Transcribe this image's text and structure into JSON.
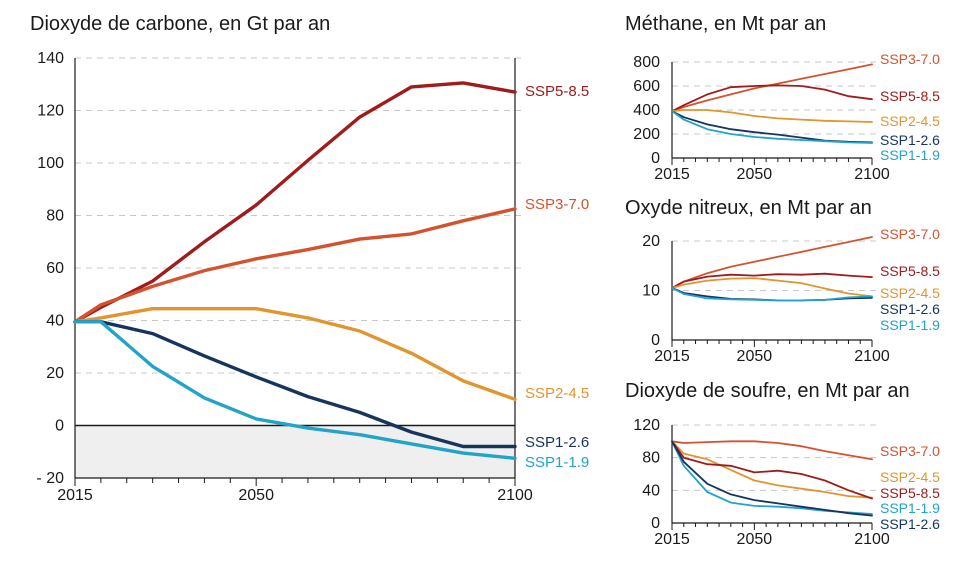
{
  "colors": {
    "SSP5-8.5": "#a01c1c",
    "SSP3-7.0": "#d4532f",
    "SSP2-4.5": "#e0952f",
    "SSP1-2.6": "#16345e",
    "SSP1-1.9": "#22a3c8",
    "negative_band": "#efefef"
  },
  "chart_data": [
    {
      "id": "co2",
      "type": "line",
      "title": "Dioxyde de carbone, en Gt par an",
      "xlim": [
        2015,
        2100
      ],
      "ylim": [
        -20,
        140
      ],
      "x_tick_labels": [
        "2015",
        "2050",
        "2100"
      ],
      "y_ticks": [
        -20,
        0,
        20,
        40,
        60,
        80,
        100,
        120,
        140
      ],
      "y_tick_labels": [
        "- 20",
        "0",
        "20",
        "40",
        "60",
        "80",
        "100",
        "120",
        "140"
      ],
      "negative_band": true,
      "x": [
        2015,
        2020,
        2030,
        2040,
        2050,
        2060,
        2070,
        2080,
        2090,
        2100
      ],
      "series": [
        {
          "name": "SSP5-8.5",
          "values": [
            39.5,
            45,
            55,
            70,
            84,
            101,
            117.5,
            129,
            130.5,
            127
          ]
        },
        {
          "name": "SSP3-7.0",
          "values": [
            39.5,
            46,
            53,
            59,
            63.5,
            67,
            71,
            73,
            78,
            82.5
          ]
        },
        {
          "name": "SSP2-4.5",
          "values": [
            39.5,
            41,
            44.5,
            44.5,
            44.5,
            41,
            36,
            27.5,
            17,
            10
          ]
        },
        {
          "name": "SSP1-2.6",
          "values": [
            39.5,
            39.5,
            35,
            26.5,
            18.5,
            11,
            5,
            -2.5,
            -8,
            -8
          ]
        },
        {
          "name": "SSP1-1.9",
          "values": [
            39.5,
            39.5,
            22.5,
            10.5,
            2.5,
            -1,
            -3.5,
            -7,
            -10.5,
            -12.5
          ]
        }
      ],
      "label_order": [
        "SSP5-8.5",
        "SSP3-7.0",
        "SSP2-4.5",
        "SSP1-2.6",
        "SSP1-1.9"
      ]
    },
    {
      "id": "ch4",
      "type": "line",
      "title": "Méthane, en Mt par an",
      "xlim": [
        2015,
        2100
      ],
      "ylim": [
        0,
        800
      ],
      "x_tick_labels": [
        "2015",
        "2050",
        "2100"
      ],
      "y_ticks": [
        0,
        200,
        400,
        600,
        800
      ],
      "y_tick_labels": [
        "0",
        "200",
        "400",
        "600",
        "800"
      ],
      "x": [
        2015,
        2020,
        2030,
        2040,
        2050,
        2060,
        2070,
        2080,
        2090,
        2100
      ],
      "series": [
        {
          "name": "SSP3-7.0",
          "values": [
            390,
            425,
            480,
            530,
            580,
            620,
            660,
            700,
            740,
            780
          ]
        },
        {
          "name": "SSP5-8.5",
          "values": [
            390,
            440,
            530,
            590,
            600,
            605,
            600,
            570,
            515,
            490
          ]
        },
        {
          "name": "SSP2-4.5",
          "values": [
            390,
            400,
            400,
            380,
            350,
            330,
            320,
            310,
            305,
            300
          ]
        },
        {
          "name": "SSP1-2.6",
          "values": [
            390,
            340,
            280,
            240,
            215,
            195,
            170,
            145,
            135,
            130
          ]
        },
        {
          "name": "SSP1-1.9",
          "values": [
            390,
            320,
            240,
            200,
            175,
            160,
            150,
            140,
            130,
            125
          ]
        }
      ],
      "label_order": [
        "SSP3-7.0",
        "SSP5-8.5",
        "SSP2-4.5",
        "SSP1-2.6",
        "SSP1-1.9"
      ]
    },
    {
      "id": "n2o",
      "type": "line",
      "title": "Oxyde nitreux, en Mt par an",
      "xlim": [
        2015,
        2100
      ],
      "ylim": [
        0,
        20
      ],
      "x_tick_labels": [
        "2015",
        "2050",
        "2100"
      ],
      "y_ticks": [
        0,
        10,
        20
      ],
      "y_tick_labels": [
        "0",
        "10",
        "20"
      ],
      "x": [
        2015,
        2020,
        2030,
        2040,
        2050,
        2060,
        2070,
        2080,
        2090,
        2100
      ],
      "series": [
        {
          "name": "SSP3-7.0",
          "values": [
            10.5,
            11.8,
            13.5,
            14.8,
            15.8,
            16.8,
            17.8,
            18.8,
            19.8,
            20.8
          ]
        },
        {
          "name": "SSP5-8.5",
          "values": [
            10.5,
            11.8,
            12.8,
            13.2,
            13.0,
            13.3,
            13.2,
            13.4,
            13.0,
            12.7
          ]
        },
        {
          "name": "SSP2-4.5",
          "values": [
            10.5,
            11.2,
            12.0,
            12.4,
            12.5,
            12.0,
            11.5,
            10.4,
            9.4,
            8.8
          ]
        },
        {
          "name": "SSP1-2.6",
          "values": [
            10.5,
            9.5,
            8.8,
            8.3,
            8.2,
            8.0,
            8.0,
            8.1,
            8.4,
            8.5
          ]
        },
        {
          "name": "SSP1-1.9",
          "values": [
            10.5,
            9.3,
            8.4,
            8.2,
            8.1,
            8.0,
            8.0,
            8.1,
            8.6,
            8.8
          ]
        }
      ],
      "label_order": [
        "SSP3-7.0",
        "SSP5-8.5",
        "SSP2-4.5",
        "SSP1-2.6",
        "SSP1-1.9"
      ]
    },
    {
      "id": "so2",
      "type": "line",
      "title": "Dioxyde de soufre, en Mt par an",
      "xlim": [
        2015,
        2100
      ],
      "ylim": [
        0,
        120
      ],
      "x_tick_labels": [
        "2015",
        "2050",
        "2100"
      ],
      "y_ticks": [
        0,
        40,
        80,
        120
      ],
      "y_tick_labels": [
        "0",
        "40",
        "80",
        "120"
      ],
      "x": [
        2015,
        2020,
        2030,
        2040,
        2050,
        2060,
        2070,
        2080,
        2090,
        2100
      ],
      "series": [
        {
          "name": "SSP3-7.0",
          "values": [
            100,
            98,
            99,
            100,
            100,
            98,
            94,
            88,
            83,
            78
          ]
        },
        {
          "name": "SSP2-4.5",
          "values": [
            100,
            85,
            78,
            65,
            52,
            46,
            42,
            38,
            33,
            31
          ]
        },
        {
          "name": "SSP5-8.5",
          "values": [
            100,
            80,
            72,
            70,
            62,
            64,
            60,
            52,
            40,
            30
          ]
        },
        {
          "name": "SSP1-1.9",
          "values": [
            100,
            70,
            38,
            25,
            21,
            20,
            18,
            15,
            13,
            11
          ]
        },
        {
          "name": "SSP1-2.6",
          "values": [
            100,
            75,
            48,
            35,
            28,
            24,
            20,
            16,
            12,
            9
          ]
        }
      ],
      "label_order": [
        "SSP3-7.0",
        "SSP2-4.5",
        "SSP5-8.5",
        "SSP1-1.9",
        "SSP1-2.6"
      ]
    }
  ]
}
